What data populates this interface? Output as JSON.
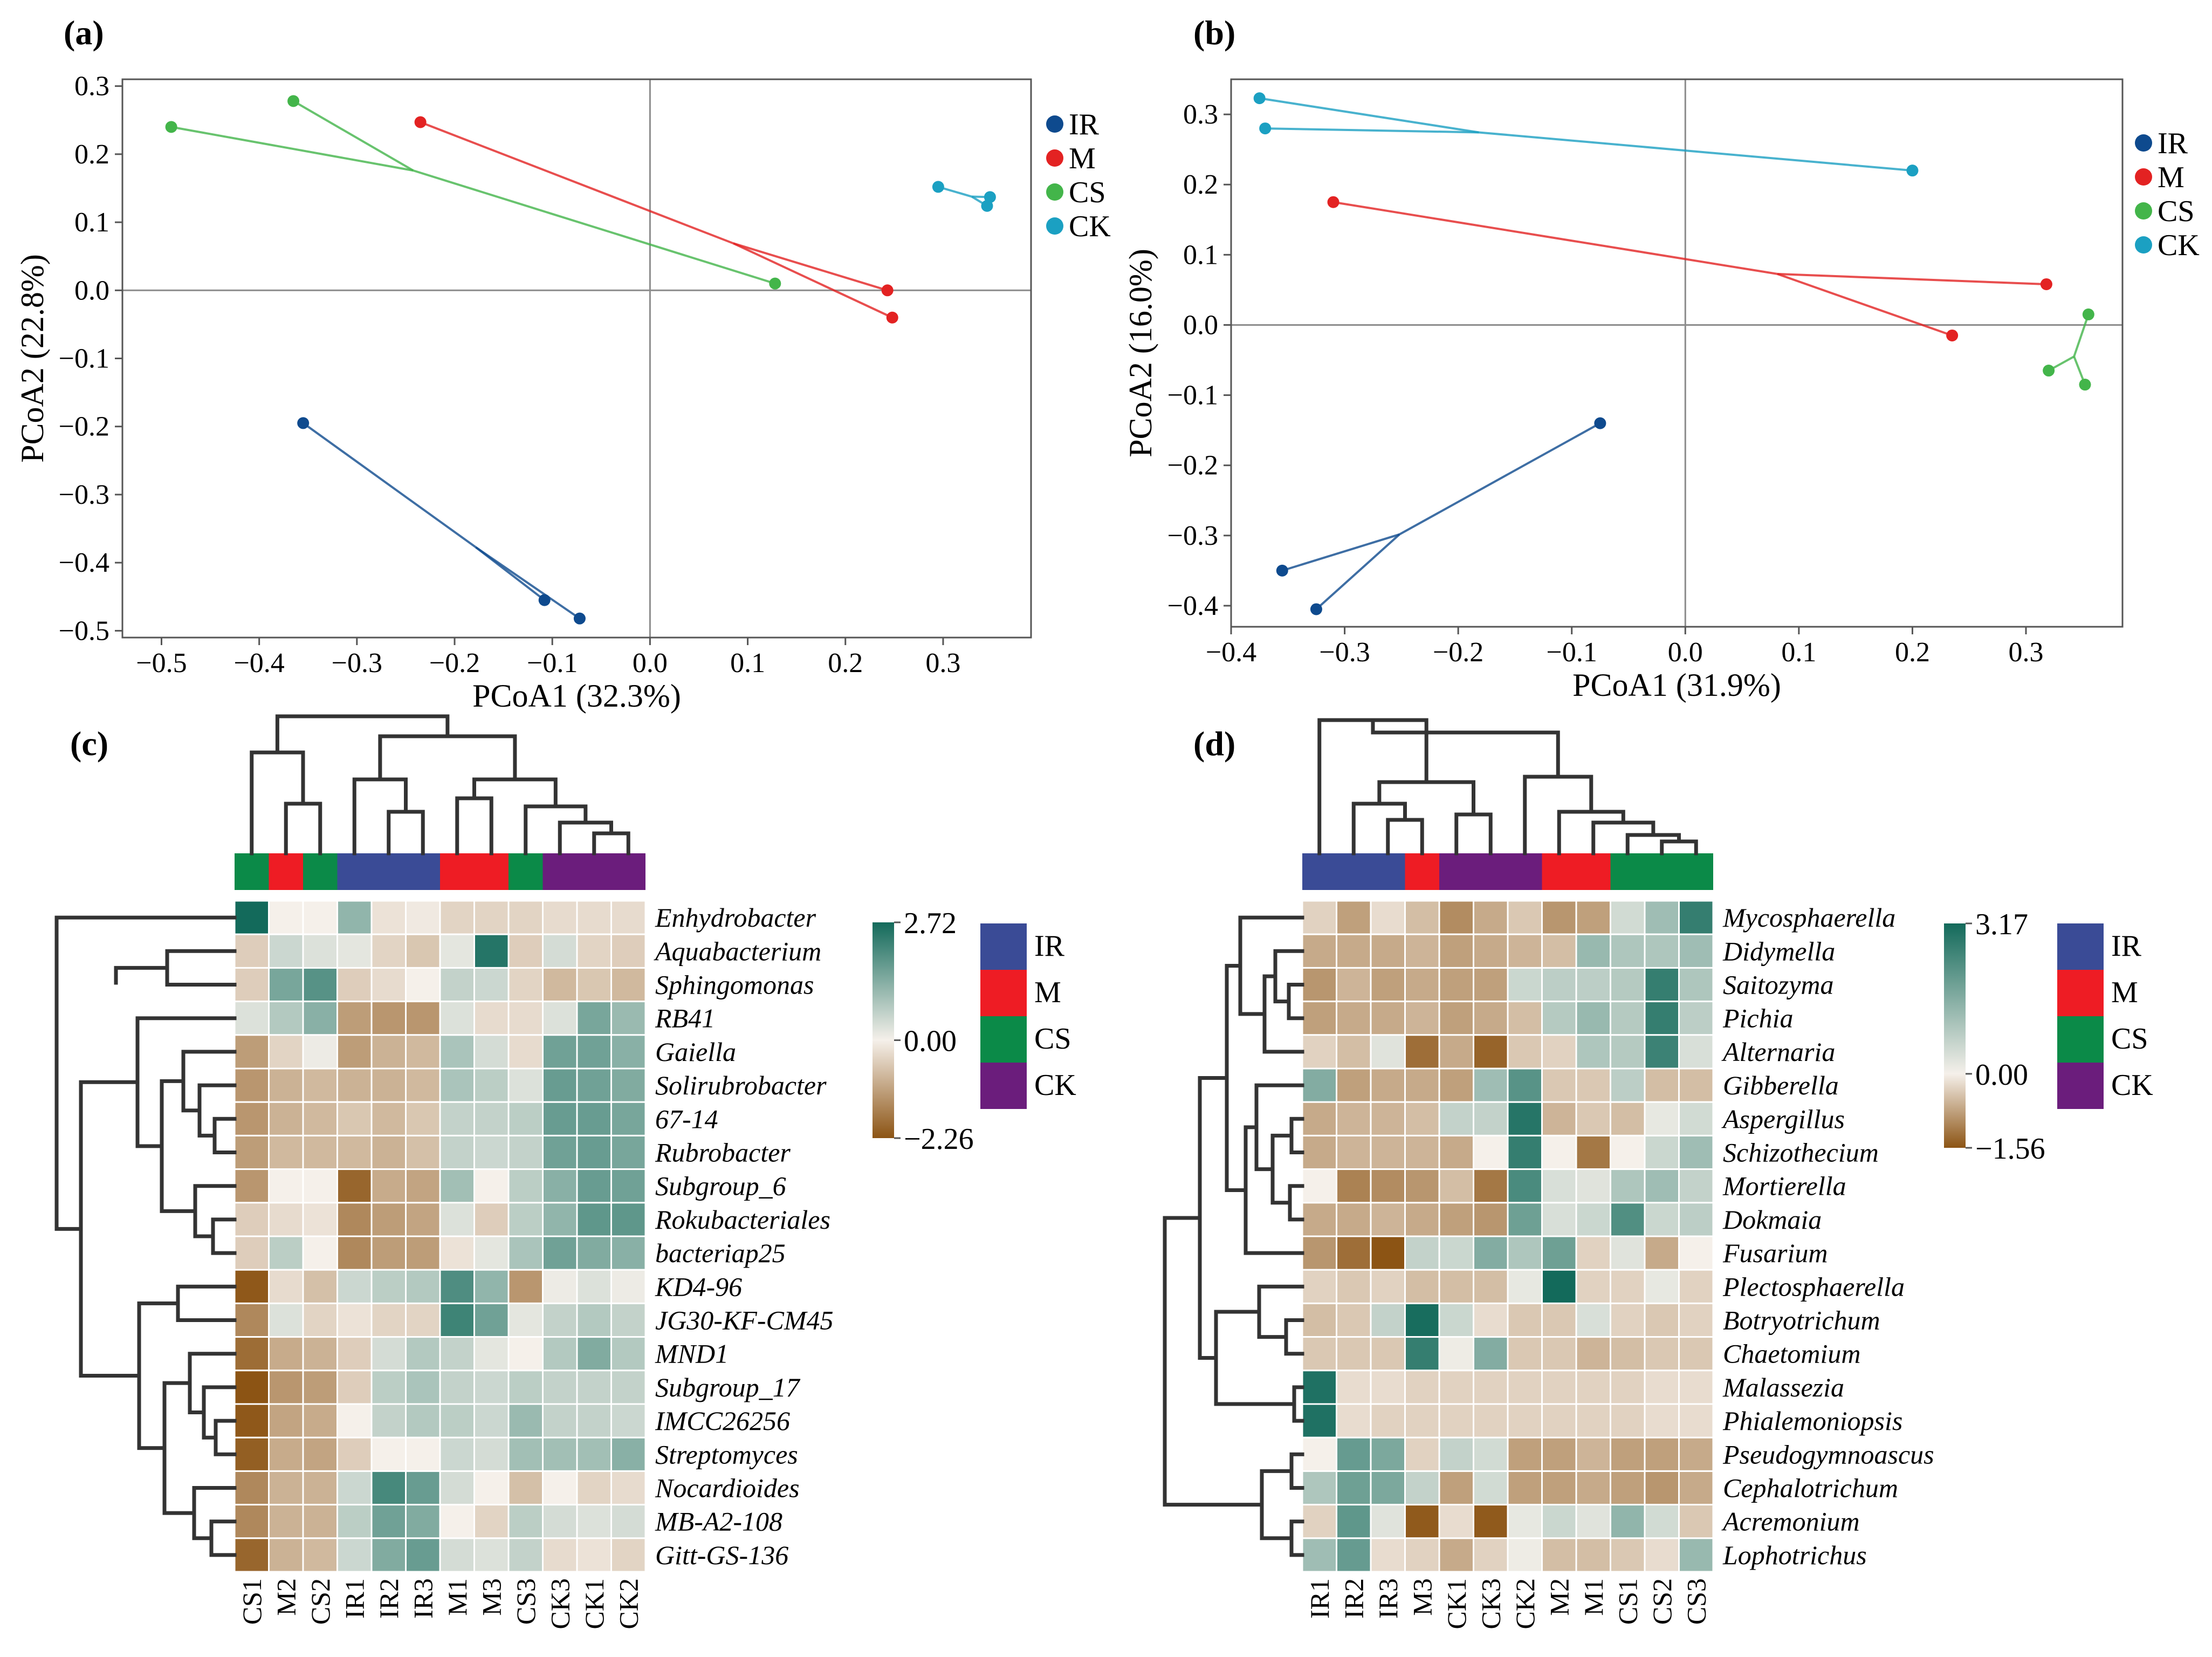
{
  "colors": {
    "IR": "#0e4a8e",
    "M": "#e32222",
    "CS": "#43b54a",
    "CK": "#1ba0c2",
    "legend_box": {
      "IR": "#3a4b96",
      "M": "#ee1c24",
      "CS": "#0b8a48",
      "CK": "#6b1d7c"
    },
    "heat_low": "#8c5414",
    "heat_mid": "#f5f0ea",
    "heat_high": "#136a5b"
  },
  "chart_data": [
    {
      "type": "scatter",
      "panel": "(a)",
      "xlabel": "PCoA1 (32.3%)",
      "ylabel": "PCoA2 (22.8%)",
      "xlim": [
        -0.54,
        0.39
      ],
      "ylim": [
        -0.51,
        0.31
      ],
      "xticks": [
        -0.5,
        -0.4,
        -0.3,
        -0.2,
        -0.1,
        0.0,
        0.1,
        0.2,
        0.3
      ],
      "xtick_labels": [
        "−0.5",
        "−0.4",
        "−0.3",
        "−0.2",
        "−0.1",
        "0.0",
        "0.1",
        "0.2",
        "0.3"
      ],
      "yticks": [
        -0.5,
        -0.4,
        -0.3,
        -0.2,
        -0.1,
        0.0,
        0.1,
        0.2,
        0.3
      ],
      "ytick_labels": [
        "−0.5",
        "−0.4",
        "−0.3",
        "−0.2",
        "−0.1",
        "0.0",
        "0.1",
        "0.2",
        "0.3"
      ],
      "legend": [
        "IR",
        "M",
        "CS",
        "CK"
      ],
      "series": [
        {
          "name": "IR",
          "points": [
            [
              -0.355,
              -0.195
            ],
            [
              -0.108,
              -0.455
            ],
            [
              -0.072,
              -0.482
            ]
          ]
        },
        {
          "name": "M",
          "points": [
            [
              -0.235,
              0.247
            ],
            [
              0.243,
              0.0
            ],
            [
              0.248,
              -0.04
            ]
          ]
        },
        {
          "name": "CS",
          "points": [
            [
              -0.49,
              0.24
            ],
            [
              -0.365,
              0.278
            ],
            [
              0.128,
              0.01
            ]
          ]
        },
        {
          "name": "CK",
          "points": [
            [
              0.295,
              0.152
            ],
            [
              0.348,
              0.137
            ],
            [
              0.345,
              0.124
            ]
          ]
        }
      ]
    },
    {
      "type": "scatter",
      "panel": "(b)",
      "xlabel": "PCoA1 (31.9%)",
      "ylabel": "PCoA2 (16.0%)",
      "xlim": [
        -0.4,
        0.385
      ],
      "ylim": [
        -0.43,
        0.35
      ],
      "xticks": [
        -0.4,
        -0.3,
        -0.2,
        -0.1,
        0.0,
        0.1,
        0.2,
        0.3
      ],
      "xtick_labels": [
        "−0.4",
        "−0.3",
        "−0.2",
        "−0.1",
        "0.0",
        "0.1",
        "0.2",
        "0.3"
      ],
      "yticks": [
        -0.4,
        -0.3,
        -0.2,
        -0.1,
        0.0,
        0.1,
        0.2,
        0.3
      ],
      "ytick_labels": [
        "−0.4",
        "−0.3",
        "−0.2",
        "−0.1",
        "0.0",
        "0.1",
        "0.2",
        "0.3"
      ],
      "legend": [
        "IR",
        "M",
        "CS",
        "CK"
      ],
      "series": [
        {
          "name": "IR",
          "points": [
            [
              -0.075,
              -0.14
            ],
            [
              -0.355,
              -0.35
            ],
            [
              -0.325,
              -0.405
            ]
          ]
        },
        {
          "name": "M",
          "points": [
            [
              -0.31,
              0.175
            ],
            [
              0.318,
              0.058
            ],
            [
              0.235,
              -0.015
            ]
          ]
        },
        {
          "name": "CS",
          "points": [
            [
              0.355,
              0.015
            ],
            [
              0.32,
              -0.065
            ],
            [
              0.352,
              -0.085
            ]
          ]
        },
        {
          "name": "CK",
          "points": [
            [
              -0.375,
              0.323
            ],
            [
              -0.37,
              0.28
            ],
            [
              0.2,
              0.22
            ]
          ]
        }
      ]
    },
    {
      "type": "heatmap",
      "panel": "(c)",
      "columns": [
        "CS1",
        "M2",
        "CS2",
        "IR1",
        "IR2",
        "IR3",
        "M1",
        "M3",
        "CS3",
        "CK3",
        "CK1",
        "CK2"
      ],
      "column_groups": [
        "CS",
        "M",
        "CS",
        "IR",
        "IR",
        "IR",
        "M",
        "M",
        "CS",
        "CK",
        "CK",
        "CK"
      ],
      "rows": [
        "Enhydrobacter",
        "Aquabacterium",
        "Sphingomonas",
        "RB41",
        "Gaiella",
        "Solirubrobacter",
        "67-14",
        "Rubrobacter",
        "Subgroup_6",
        "Rokubacteriales",
        "bacteriap25",
        "KD4-96",
        "JG30-KF-CM45",
        "MND1",
        "Subgroup_17",
        "IMCC26256",
        "Streptomyces",
        "Nocardioides",
        "MB-A2-108",
        "Gitt-GS-136"
      ],
      "scale_max": 2.72,
      "scale_min": -2.26,
      "scale_labels": [
        "2.72",
        "0.00",
        "−2.26"
      ],
      "legend": [
        "IR",
        "M",
        "CS",
        "CK"
      ],
      "values": [
        [
          2.72,
          0.0,
          0.0,
          1.2,
          -0.2,
          -0.1,
          -0.4,
          -0.4,
          -0.4,
          -0.3,
          -0.3,
          -0.3
        ],
        [
          -0.5,
          0.5,
          0.3,
          0.2,
          -0.4,
          -0.6,
          0.2,
          2.5,
          -0.5,
          0.4,
          -0.4,
          -0.5
        ],
        [
          -0.5,
          1.5,
          1.9,
          -0.5,
          -0.3,
          0.0,
          0.6,
          0.5,
          -0.4,
          -0.8,
          -0.6,
          -0.8
        ],
        [
          0.3,
          0.8,
          1.3,
          -1.2,
          -1.3,
          -1.3,
          0.3,
          -0.3,
          -0.3,
          0.3,
          1.5,
          1.1
        ],
        [
          -1.2,
          -0.4,
          0.1,
          -1.2,
          -0.9,
          -0.8,
          0.9,
          0.4,
          -0.3,
          1.6,
          1.6,
          1.3
        ],
        [
          -1.3,
          -0.9,
          -0.8,
          -0.9,
          -0.9,
          -0.8,
          0.9,
          0.7,
          0.3,
          1.7,
          1.6,
          1.4
        ],
        [
          -1.3,
          -0.9,
          -0.8,
          -0.6,
          -0.8,
          -0.6,
          0.6,
          0.6,
          0.7,
          1.7,
          1.7,
          1.5
        ],
        [
          -1.2,
          -0.8,
          -0.8,
          -0.8,
          -0.9,
          -0.7,
          0.6,
          0.5,
          0.6,
          1.6,
          1.7,
          1.5
        ],
        [
          -1.3,
          0.0,
          0.0,
          -2.0,
          -1.0,
          -1.1,
          1.0,
          0.0,
          0.7,
          1.3,
          1.7,
          1.6
        ],
        [
          -0.5,
          -0.3,
          -0.2,
          -1.5,
          -1.2,
          -1.1,
          0.3,
          -0.5,
          0.7,
          1.2,
          1.8,
          1.8
        ],
        [
          -0.5,
          0.7,
          0.0,
          -1.5,
          -1.2,
          -1.2,
          -0.2,
          0.2,
          0.9,
          1.6,
          1.4,
          1.3
        ],
        [
          -2.2,
          -0.3,
          -0.7,
          0.5,
          0.7,
          0.8,
          2.0,
          1.2,
          -1.3,
          0.1,
          0.3,
          0.1
        ],
        [
          -1.5,
          0.3,
          -0.4,
          -0.2,
          -0.4,
          -0.4,
          2.2,
          1.6,
          0.2,
          0.6,
          0.8,
          0.6
        ],
        [
          -1.9,
          -1.0,
          -0.9,
          -0.5,
          0.4,
          0.8,
          0.6,
          0.2,
          0.0,
          0.8,
          1.4,
          0.8
        ],
        [
          -2.26,
          -1.3,
          -1.2,
          -0.5,
          0.7,
          0.9,
          0.6,
          0.5,
          0.7,
          0.6,
          0.6,
          0.6
        ],
        [
          -2.2,
          -1.1,
          -1.0,
          0.0,
          0.6,
          0.8,
          0.7,
          0.5,
          1.1,
          0.6,
          0.6,
          0.5
        ],
        [
          -2.1,
          -1.0,
          -1.1,
          -0.5,
          0.0,
          0.0,
          0.5,
          0.4,
          1.0,
          1.0,
          1.0,
          1.3
        ],
        [
          -1.5,
          -0.9,
          -0.9,
          0.5,
          2.1,
          1.7,
          0.4,
          0.0,
          -0.7,
          0.0,
          -0.4,
          -0.3
        ],
        [
          -1.5,
          -0.9,
          -0.9,
          0.7,
          1.6,
          1.4,
          0.0,
          -0.4,
          0.7,
          0.4,
          0.3,
          0.4
        ],
        [
          -2.0,
          -0.9,
          -0.8,
          0.5,
          1.4,
          1.7,
          0.4,
          0.3,
          0.6,
          -0.3,
          -0.2,
          -0.4
        ]
      ]
    },
    {
      "type": "heatmap",
      "panel": "(d)",
      "columns": [
        "IR1",
        "IR2",
        "IR3",
        "M3",
        "CK1",
        "CK3",
        "CK2",
        "M2",
        "M1",
        "CS1",
        "CS2",
        "CS3"
      ],
      "column_groups": [
        "IR",
        "IR",
        "IR",
        "M",
        "CK",
        "CK",
        "CK",
        "M",
        "M",
        "CS",
        "CS",
        "CS"
      ],
      "rows": [
        "Mycosphaerella",
        "Didymella",
        "Saitozyma",
        "Pichia",
        "Alternaria",
        "Gibberella",
        "Aspergillus",
        "Schizothecium",
        "Mortierella",
        "Dokmaia",
        "Fusarium",
        "Plectosphaerella",
        "Botryotrichum",
        "Chaetomium",
        "Malassezia",
        "Phialemoniopsis",
        "Pseudogymnoascus",
        "Cephalotrichum",
        "Acremonium",
        "Lophotrichus"
      ],
      "scale_max": 3.17,
      "scale_min": -1.56,
      "scale_labels": [
        "3.17",
        "0.00",
        "−1.56"
      ],
      "legend": [
        "IR",
        "M",
        "CS",
        "CK"
      ],
      "values": [
        [
          -0.3,
          -0.8,
          -0.2,
          -0.5,
          -1.0,
          -0.7,
          -0.4,
          -0.9,
          -0.8,
          0.5,
          1.2,
          2.7
        ],
        [
          -0.7,
          -0.7,
          -0.7,
          -0.6,
          -0.8,
          -0.7,
          -0.6,
          -0.5,
          1.3,
          1.0,
          1.0,
          1.2
        ],
        [
          -0.9,
          -0.6,
          -0.8,
          -0.7,
          -0.8,
          -0.8,
          0.6,
          0.8,
          0.8,
          0.9,
          2.7,
          1.0
        ],
        [
          -0.8,
          -0.7,
          -0.7,
          -0.6,
          -0.8,
          -0.7,
          -0.5,
          0.9,
          1.3,
          0.9,
          2.7,
          0.8
        ],
        [
          -0.3,
          -0.5,
          0.3,
          -1.3,
          -0.7,
          -1.4,
          -0.4,
          -0.3,
          1.0,
          0.9,
          2.6,
          0.4
        ],
        [
          1.6,
          -0.8,
          -0.7,
          -0.7,
          -0.8,
          1.2,
          2.2,
          -0.4,
          -0.4,
          0.8,
          -0.5,
          -0.5
        ],
        [
          -0.7,
          -0.6,
          -0.6,
          -0.5,
          0.7,
          0.7,
          2.9,
          -0.6,
          -0.4,
          -0.5,
          0.2,
          0.5
        ],
        [
          -0.7,
          -0.6,
          -0.6,
          -0.6,
          -0.7,
          0.0,
          2.7,
          0.0,
          -1.2,
          0.0,
          0.6,
          1.2
        ],
        [
          0.0,
          -1.1,
          -1.0,
          -0.9,
          -0.5,
          -1.2,
          2.4,
          0.4,
          0.3,
          1.0,
          1.2,
          0.7
        ],
        [
          -0.7,
          -0.7,
          -0.6,
          -0.7,
          -0.8,
          -0.9,
          1.9,
          0.4,
          0.6,
          2.3,
          0.6,
          0.8
        ],
        [
          -0.9,
          -1.3,
          -1.56,
          0.7,
          0.6,
          1.6,
          1.0,
          1.9,
          -0.3,
          0.3,
          -0.7,
          0.0
        ],
        [
          -0.3,
          -0.4,
          -0.3,
          -0.5,
          -0.5,
          -0.5,
          0.2,
          3.17,
          -0.3,
          -0.3,
          0.2,
          -0.3
        ],
        [
          -0.5,
          -0.4,
          0.7,
          3.1,
          0.6,
          -0.2,
          -0.4,
          -0.4,
          0.4,
          -0.3,
          -0.4,
          -0.3
        ],
        [
          -0.4,
          -0.4,
          -0.4,
          2.7,
          0.1,
          1.6,
          -0.4,
          -0.4,
          -0.6,
          -0.5,
          -0.4,
          -0.4
        ],
        [
          3.0,
          -0.2,
          -0.2,
          -0.3,
          -0.3,
          -0.3,
          -0.3,
          -0.3,
          -0.3,
          -0.3,
          -0.2,
          -0.2
        ],
        [
          3.0,
          -0.2,
          -0.3,
          -0.3,
          -0.3,
          -0.3,
          -0.3,
          -0.3,
          -0.3,
          -0.3,
          -0.2,
          -0.2
        ],
        [
          0.0,
          2.0,
          1.7,
          -0.3,
          0.7,
          0.5,
          -0.8,
          -0.8,
          -0.6,
          -0.8,
          -0.8,
          -0.7
        ],
        [
          1.0,
          1.9,
          1.7,
          0.7,
          -0.8,
          0.5,
          -0.8,
          -0.8,
          -0.7,
          -0.8,
          -0.9,
          -0.7
        ],
        [
          -0.3,
          2.1,
          0.3,
          -1.5,
          -0.2,
          -1.5,
          0.2,
          0.6,
          0.3,
          1.4,
          0.5,
          -0.4
        ],
        [
          1.2,
          2.0,
          -0.2,
          -0.3,
          -0.7,
          -0.3,
          0.1,
          -0.5,
          -0.5,
          -0.4,
          -0.2,
          1.3
        ]
      ]
    }
  ]
}
